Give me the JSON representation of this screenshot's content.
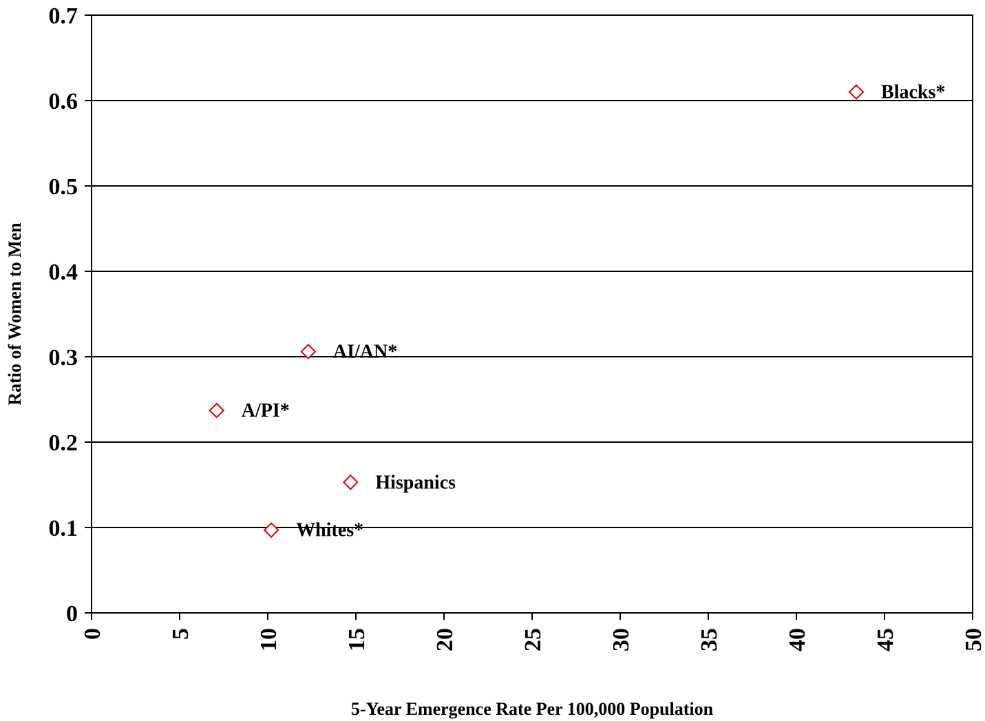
{
  "chart_data": {
    "type": "scatter",
    "title": "",
    "xlabel": "5-Year Emergence Rate Per 100,000 Population",
    "ylabel": "Ratio of Women to Men",
    "xlim": [
      0,
      50
    ],
    "ylim": [
      0,
      0.7
    ],
    "xticks": [
      "0",
      "5",
      "10",
      "15",
      "20",
      "25",
      "30",
      "35",
      "40",
      "45",
      "50"
    ],
    "yticks": [
      "0",
      "0.1",
      "0.2",
      "0.3",
      "0.4",
      "0.5",
      "0.6",
      "0.7"
    ],
    "grid": "horizontal",
    "marker": "open-diamond",
    "colors": {
      "marker": "#e00000",
      "grid": "#000000",
      "text": "#000000"
    },
    "points": [
      {
        "label": "Blacks*",
        "x": 43.4,
        "y": 0.61
      },
      {
        "label": "AI/AN*",
        "x": 12.3,
        "y": 0.306
      },
      {
        "label": "A/PI*",
        "x": 7.1,
        "y": 0.237
      },
      {
        "label": "Hispanics",
        "x": 14.7,
        "y": 0.153
      },
      {
        "label": "Whites*",
        "x": 10.2,
        "y": 0.097
      }
    ]
  }
}
